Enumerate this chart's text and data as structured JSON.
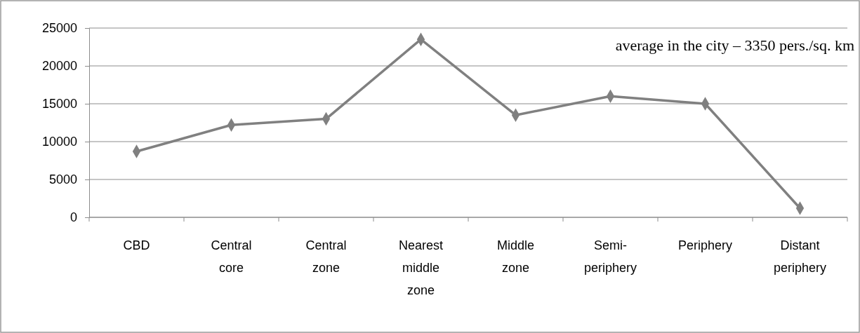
{
  "chart_data": {
    "type": "line",
    "categories": [
      "CBD",
      "Central core",
      "Central zone",
      "Nearest middle zone",
      "Middle zone",
      "Semi-periphery",
      "Periphery",
      "Distant periphery"
    ],
    "series": [
      {
        "color": "#808080",
        "values": [
          8700,
          12200,
          13000,
          23500,
          13500,
          16000,
          15000,
          1200
        ]
      }
    ],
    "ylim": [
      0,
      25000
    ],
    "yticks": [
      0,
      5000,
      10000,
      15000,
      20000,
      25000
    ],
    "grid": "y",
    "marker": "diamond",
    "line_style": "solid",
    "annotations": [
      "average in the city – 3350 pers./sq. km"
    ]
  }
}
